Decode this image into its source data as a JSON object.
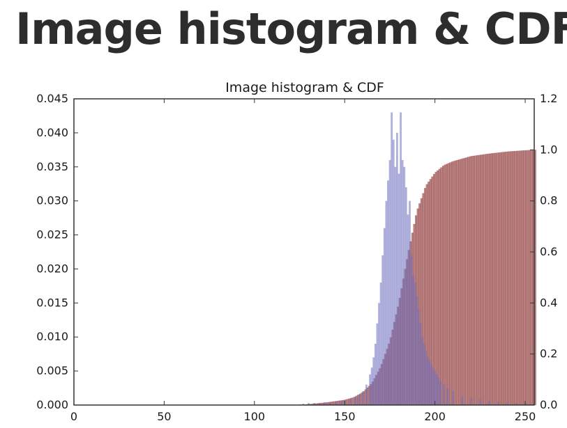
{
  "slide": {
    "title": "Image histogram & CDF"
  },
  "chart_data": {
    "type": "bar",
    "title": "Image histogram & CDF",
    "xlabel": "",
    "ylabel": "",
    "ylabel_right": "",
    "xlim": [
      0,
      255
    ],
    "ylim": [
      0,
      0.045
    ],
    "ylim_right": [
      0,
      1.2
    ],
    "x_ticks": [
      0,
      50,
      100,
      150,
      200,
      250
    ],
    "y_ticks": [
      "0.000",
      "0.005",
      "0.010",
      "0.015",
      "0.020",
      "0.025",
      "0.030",
      "0.035",
      "0.040",
      "0.045"
    ],
    "y_right_ticks": [
      "0.0",
      "0.2",
      "0.4",
      "0.6",
      "0.8",
      "1.0",
      "1.2"
    ],
    "grid": false,
    "legend": "none",
    "colors": {
      "histogram": "#7070c0",
      "cdf": "#8b3030",
      "overlap": "#5a2a55",
      "axes": "#333333"
    },
    "series": [
      {
        "axis": "left",
        "color": "#7070c0",
        "x": [
          125,
          127,
          130,
          133,
          136,
          139,
          142,
          145,
          148,
          150,
          153,
          156,
          158,
          160,
          162,
          164,
          165,
          166,
          167,
          168,
          169,
          170,
          171,
          172,
          173,
          174,
          175,
          176,
          177,
          178,
          179,
          180,
          181,
          182,
          183,
          184,
          185,
          186,
          187,
          188,
          189,
          190,
          191,
          192,
          193,
          194,
          195,
          196,
          197,
          198,
          199,
          200,
          201,
          202,
          203,
          205,
          207,
          210,
          215,
          220,
          225,
          230,
          235,
          240,
          245,
          250,
          255
        ],
        "values": [
          0.0001,
          0.0002,
          0.0003,
          0.0003,
          0.0003,
          0.0004,
          0.0004,
          0.0005,
          0.0006,
          0.0007,
          0.0009,
          0.0012,
          0.0015,
          0.002,
          0.003,
          0.0045,
          0.0055,
          0.007,
          0.009,
          0.012,
          0.015,
          0.018,
          0.022,
          0.026,
          0.03,
          0.033,
          0.036,
          0.043,
          0.039,
          0.035,
          0.04,
          0.034,
          0.043,
          0.036,
          0.035,
          0.032,
          0.028,
          0.03,
          0.022,
          0.019,
          0.018,
          0.016,
          0.014,
          0.012,
          0.01,
          0.009,
          0.008,
          0.007,
          0.0065,
          0.006,
          0.0055,
          0.005,
          0.0045,
          0.004,
          0.0035,
          0.003,
          0.0025,
          0.002,
          0.0013,
          0.001,
          0.0008,
          0.0006,
          0.0005,
          0.0004,
          0.0003,
          0.0002,
          0.0001
        ]
      },
      {
        "axis": "right",
        "color": "#8b3030",
        "x": [
          125,
          130,
          140,
          150,
          155,
          160,
          165,
          170,
          175,
          180,
          185,
          190,
          195,
          200,
          205,
          210,
          215,
          220,
          230,
          240,
          250,
          255
        ],
        "values": [
          0.0,
          0.003,
          0.01,
          0.02,
          0.03,
          0.05,
          0.085,
          0.15,
          0.25,
          0.4,
          0.59,
          0.76,
          0.86,
          0.91,
          0.94,
          0.955,
          0.965,
          0.975,
          0.985,
          0.993,
          0.998,
          1.0
        ]
      }
    ]
  }
}
